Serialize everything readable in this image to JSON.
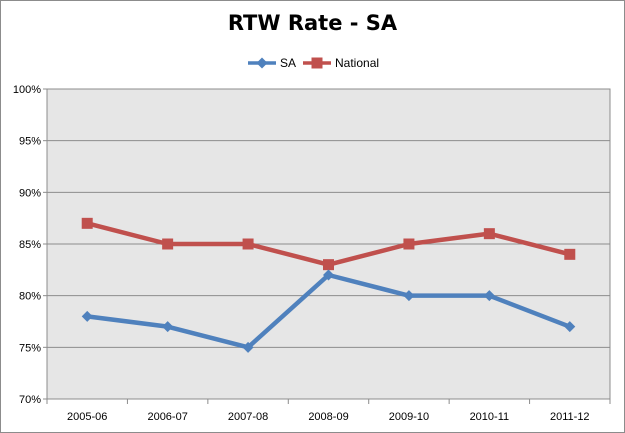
{
  "chart_data": {
    "type": "line",
    "title": "RTW Rate - SA",
    "xlabel": "",
    "ylabel": "",
    "categories": [
      "2005-06",
      "2006-07",
      "2007-08",
      "2008-09",
      "2009-10",
      "2010-11",
      "2011-12"
    ],
    "yticks": [
      "70%",
      "75%",
      "80%",
      "85%",
      "90%",
      "95%",
      "100%"
    ],
    "ylim": [
      70,
      100
    ],
    "grid": true,
    "legend_position": "top",
    "series": [
      {
        "name": "SA",
        "values": [
          78,
          77,
          75,
          82,
          80,
          80,
          77
        ],
        "color": "#4f81bd",
        "marker": "diamond"
      },
      {
        "name": "National",
        "values": [
          87,
          85,
          85,
          83,
          85,
          86,
          84
        ],
        "color": "#c0504d",
        "marker": "square"
      }
    ]
  }
}
